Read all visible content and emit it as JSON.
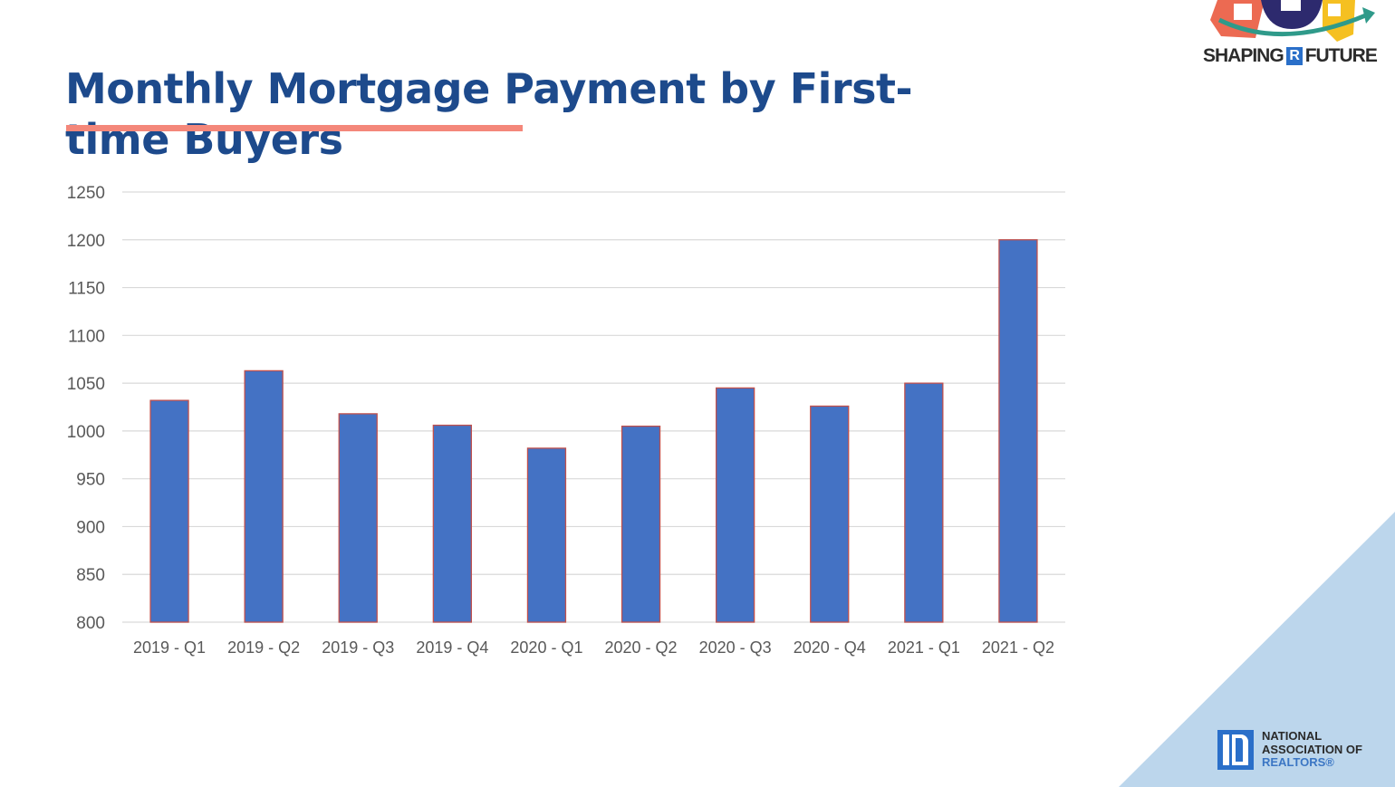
{
  "slide": {
    "title": "Monthly Mortgage Payment by First-time Buyers",
    "title_color": "#1d4a8c",
    "underline_color": "#f4877a",
    "corner_color": "#bcd6ec"
  },
  "logos": {
    "top_right": {
      "text_left": "SHAPING",
      "badge": "R",
      "text_right": "FUTURE"
    },
    "bottom_right": {
      "line1": "NATIONAL",
      "line2": "ASSOCIATION OF",
      "line3": "REALTORS®"
    }
  },
  "chart_data": {
    "type": "bar",
    "title": "Monthly Mortgage Payment by First-time Buyers",
    "xlabel": "",
    "ylabel": "",
    "categories": [
      "2019 - Q1",
      "2019 - Q2",
      "2019 - Q3",
      "2019 - Q4",
      "2020 - Q1",
      "2020 - Q2",
      "2020 - Q3",
      "2020 - Q4",
      "2021 - Q1",
      "2021 - Q2"
    ],
    "values": [
      1032,
      1063,
      1018,
      1006,
      982,
      1005,
      1045,
      1026,
      1050,
      1200
    ],
    "ylim": [
      800,
      1250
    ],
    "yticks": [
      800,
      850,
      900,
      950,
      1000,
      1050,
      1100,
      1150,
      1200,
      1250
    ],
    "grid": true,
    "legend": null,
    "bar_color": "#4472c4",
    "bar_edge_color": "#c0504d"
  }
}
